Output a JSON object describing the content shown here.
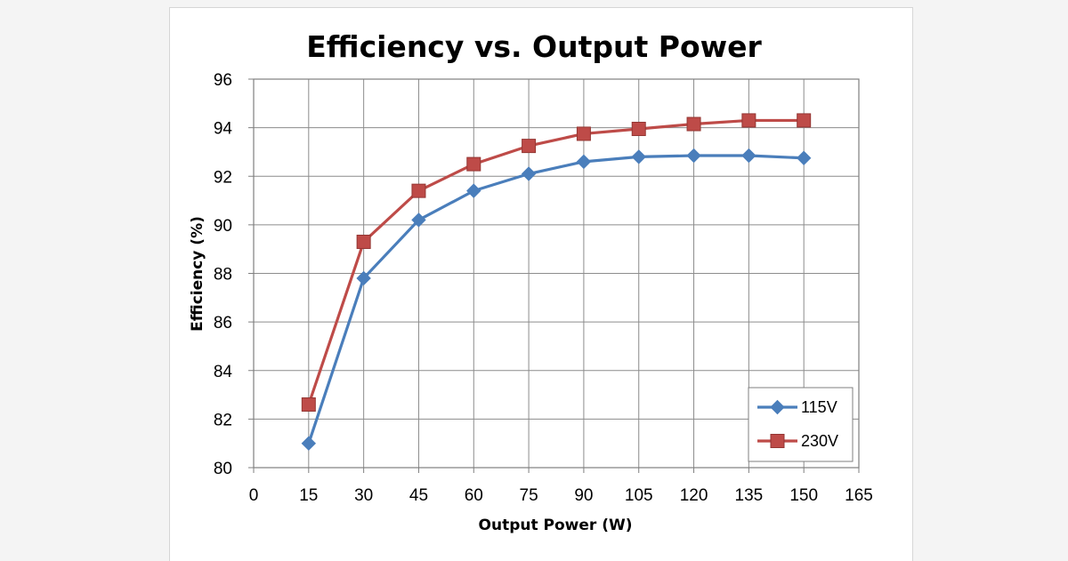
{
  "chart_data": {
    "type": "line",
    "title": "Efficiency  vs.  Output Power",
    "xlabel": "Output Power (W)",
    "ylabel": "Efficiency (%)",
    "xlim": [
      0,
      165
    ],
    "ylim": [
      80,
      96
    ],
    "x_ticks": [
      0,
      15,
      30,
      45,
      60,
      75,
      90,
      105,
      120,
      135,
      150,
      165
    ],
    "y_ticks": [
      80,
      82,
      84,
      86,
      88,
      90,
      92,
      94,
      96
    ],
    "grid": true,
    "legend_position": "bottom-right",
    "x": [
      15,
      30,
      45,
      60,
      75,
      90,
      105,
      120,
      135,
      150
    ],
    "series": [
      {
        "name": "115V",
        "color": "#4a7ebb",
        "marker": "diamond",
        "values": [
          81.0,
          87.8,
          90.2,
          91.4,
          92.1,
          92.6,
          92.8,
          92.85,
          92.85,
          92.75
        ]
      },
      {
        "name": "230V",
        "color": "#be4b48",
        "marker": "square",
        "values": [
          82.6,
          89.3,
          91.4,
          92.5,
          93.25,
          93.75,
          93.95,
          94.15,
          94.3,
          94.3
        ]
      }
    ]
  }
}
